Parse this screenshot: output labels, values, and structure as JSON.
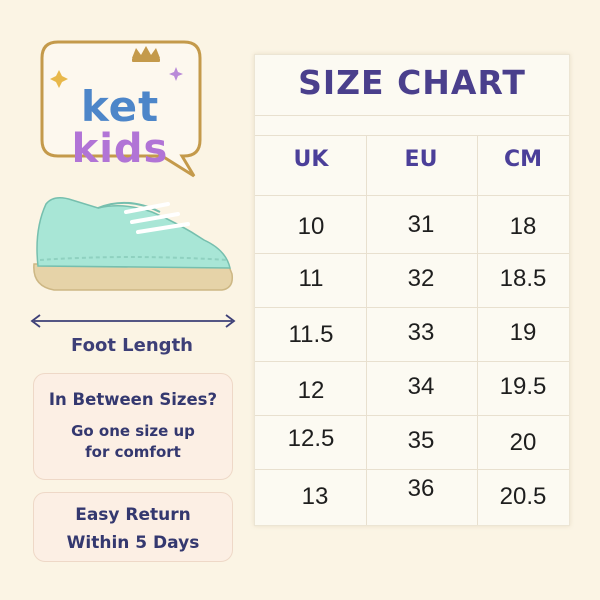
{
  "brand": {
    "line1": "ket",
    "line2": "kids"
  },
  "colors": {
    "background": "#fbf4e4",
    "logo_border": "#c49a4b",
    "ket": "#4d86c9",
    "kids": "#b174d6",
    "shoe": "#a8e6d6",
    "title": "#4a3f8c"
  },
  "measure": {
    "label": "Foot Length"
  },
  "notes": {
    "sizes_question": "In Between Sizes?",
    "sizes_line1": "Go one size up",
    "sizes_line2": "for comfort",
    "return_line1": "Easy Return",
    "return_line2": "Within 5 Days"
  },
  "table": {
    "title": "SIZE CHART",
    "headers": [
      "UK",
      "EU",
      "CM"
    ],
    "rows": [
      [
        "10",
        "31",
        "18"
      ],
      [
        "11",
        "32",
        "18.5"
      ],
      [
        "11.5",
        "33",
        "19"
      ],
      [
        "12",
        "34",
        "19.5"
      ],
      [
        "12.5",
        "35",
        "20"
      ],
      [
        "13",
        "36",
        "20.5"
      ]
    ]
  }
}
